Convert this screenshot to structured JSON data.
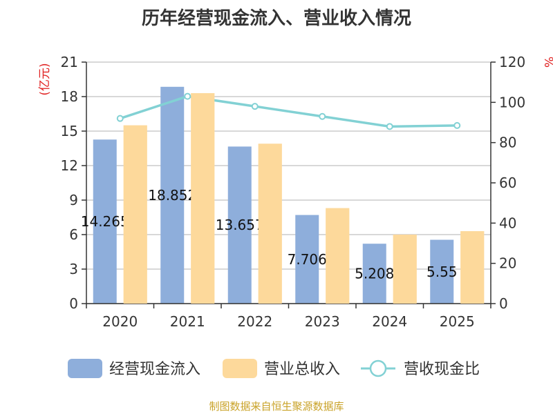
{
  "chart_data": {
    "type": "bar",
    "title": "历年经营现金流入、营业收入情况",
    "categories": [
      "2020",
      "2021",
      "2022",
      "2023",
      "2024",
      "2025"
    ],
    "series": [
      {
        "name": "经营现金流入",
        "type": "bar",
        "axis": "left",
        "values": [
          14.265,
          18.852,
          13.657,
          7.706,
          5.208,
          5.55
        ],
        "labels": [
          "14.265",
          "18.852",
          "13.657",
          "7.706",
          "5.208",
          "5.55"
        ],
        "color": "#8eaedb"
      },
      {
        "name": "营业总收入",
        "type": "bar",
        "axis": "left",
        "values": [
          15.5,
          18.3,
          13.9,
          8.3,
          6.0,
          6.3
        ],
        "color": "#fdd99b"
      },
      {
        "name": "营收现金比",
        "type": "line",
        "axis": "right",
        "values": [
          92,
          103,
          98,
          93,
          88,
          88.5
        ],
        "color": "#82d1d4"
      }
    ],
    "ylabel_left": "(亿元)",
    "ylabel_right": "%",
    "ylim_left": [
      0,
      21
    ],
    "ylim_right": [
      0,
      120
    ],
    "yticks_left": [
      0,
      3,
      6,
      9,
      12,
      15,
      18,
      21
    ],
    "yticks_right": [
      0,
      20,
      40,
      60,
      80,
      100,
      120
    ],
    "legend": "bottom"
  },
  "source_text": "制图数据来自恒生聚源数据库"
}
